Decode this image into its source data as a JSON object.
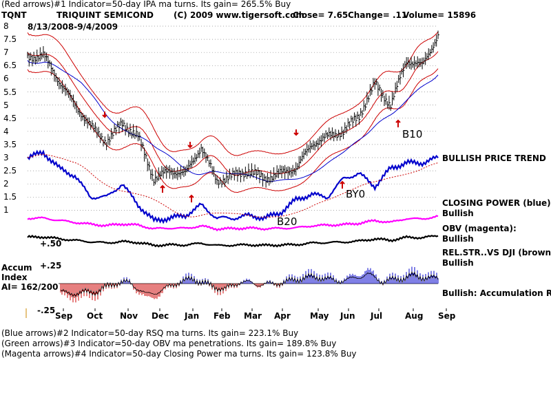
{
  "header": {
    "line1": "(Red arrows)#1 Indicator=50-day IPA ma turns. Its gain= 265.5% Buy",
    "ticker": "TQNT",
    "company": "TRIQUINT SEMICOND",
    "copyright": "(C) 2009 www.tigersoft.com",
    "close": "Close=  7.65",
    "change": "Change= .11",
    "volume": "Volume=  15896",
    "date_range": "8/13/2008-9/4/2009"
  },
  "footer": {
    "line1": "(Blue arrows)#2 Indicator=50-day RSQ ma turns. Its gain= 223.1% Buy",
    "line2": "(Green arrows)#3 Indicator=50-day OBV ma penetrations. Its gain= 189.8% Buy",
    "line3": "(Magenta arrows)#4 Indicator=50-day Closing Power ma turns. Its gain= 123.8% Buy"
  },
  "side_labels": {
    "trend": "BULLISH PRICE TREND",
    "cp1": "CLOSING POWER (blue):",
    "cp2": "Bullish",
    "obv1": "OBV (magenta):",
    "obv2": "Bullish",
    "rs1": "REL.STR..VS DJI (brown):",
    "rs2": "Bullish",
    "accum": "Bullish: Accumulation Rising"
  },
  "accum_panel": {
    "title1": "Accum",
    "title2": "Index",
    "ai": "AI= 162/200",
    "plus50": "+.50",
    "plus25": "+.25",
    "minus25": "-.25"
  },
  "signals": [
    "B20",
    "BY0",
    "B10"
  ],
  "chart_data": {
    "type": "line",
    "title": "TRIQUINT SEMICOND",
    "ylim": [
      0.5,
      8.2
    ],
    "y_ticks": [
      "8",
      "7.5",
      "7",
      "6.5",
      "6",
      "5.5",
      "5",
      "4.5",
      "4",
      "3.5",
      "3",
      "2.5",
      "2",
      "1.5",
      "1"
    ],
    "x_ticks": [
      "Sep",
      "Oct",
      "Nov",
      "Dec",
      "Jan",
      "Feb",
      "Mar",
      "Apr",
      "May",
      "Jun",
      "Jul",
      "Aug",
      "Sep"
    ],
    "grid": true,
    "colors": {
      "price": "#000000",
      "upper_band": "#cc0000",
      "middle_band": "#cc0000",
      "ma": "#0000cc",
      "closing_power": "#0000cc",
      "cp_ma": "#cc0000",
      "obv": "#ff00ff",
      "rs": "#000000",
      "accum_up": "#0000cc",
      "accum_down": "#cc0000",
      "arrows": "#cc0000"
    },
    "series": [
      {
        "name": "Close",
        "x": [
          0,
          2,
          4,
          6,
          8,
          10,
          12,
          14,
          16,
          18,
          20,
          22,
          24,
          26,
          28,
          30,
          32,
          34,
          36,
          38,
          40,
          42,
          44,
          46,
          48,
          50,
          52
        ],
        "values": [
          6.8,
          6.9,
          5.9,
          5.0,
          4.2,
          3.6,
          4.3,
          3.8,
          2.2,
          2.5,
          2.4,
          3.4,
          2.1,
          2.3,
          2.5,
          2.2,
          2.4,
          2.6,
          3.5,
          3.8,
          4.0,
          4.6,
          5.8,
          5.0,
          6.7,
          6.5,
          7.65
        ]
      },
      {
        "name": "CLOSING POWER",
        "x": [
          0,
          2,
          4,
          6,
          8,
          10,
          12,
          14,
          16,
          18,
          20,
          22,
          24,
          26,
          28,
          30,
          32,
          34,
          36,
          38,
          40,
          42,
          44,
          46,
          48,
          50,
          52
        ],
        "values": [
          3.0,
          3.2,
          2.6,
          2.3,
          1.5,
          1.5,
          2.0,
          1.2,
          0.6,
          0.7,
          0.8,
          1.2,
          0.7,
          0.7,
          0.8,
          0.7,
          0.9,
          1.4,
          1.6,
          1.5,
          2.2,
          2.4,
          1.9,
          2.6,
          2.8,
          2.8,
          3.0
        ]
      }
    ]
  }
}
